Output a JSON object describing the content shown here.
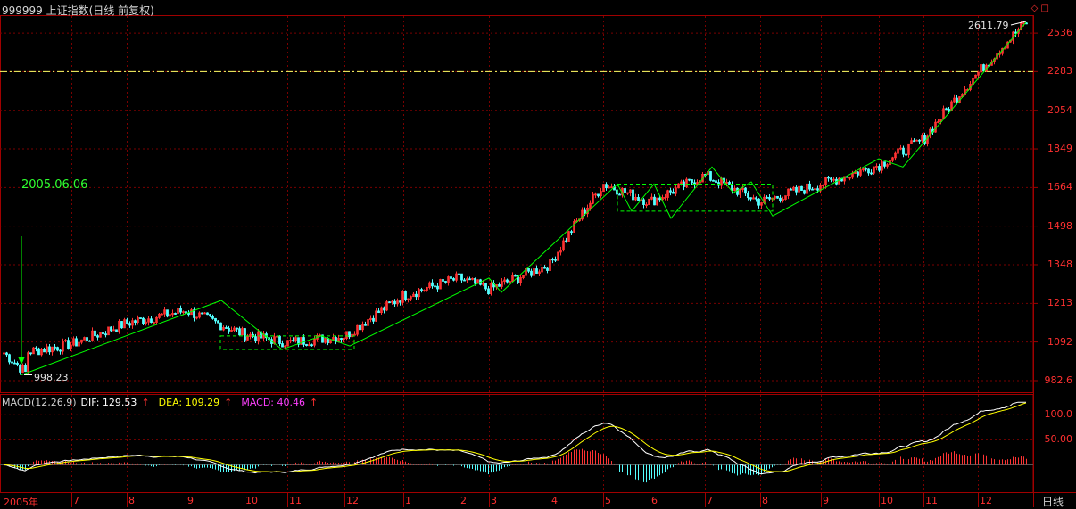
{
  "header": {
    "title": "999999 上证指数(日线 前复权)"
  },
  "annotations": {
    "date_label": "2005.06.06",
    "low_value": "998.23",
    "high_value": "2611.79"
  },
  "price_axis": {
    "labels": [
      "2536",
      "2283",
      "2054",
      "1849",
      "1664",
      "1498",
      "1348",
      "1213",
      "1092",
      "982.6"
    ]
  },
  "macd_axis": {
    "labels": [
      "100.0",
      "50.00"
    ]
  },
  "macd_legend": {
    "name": "MACD(12,26,9)",
    "dif": "DIF: 129.53",
    "dea": "DEA: 109.29",
    "macd": "MACD: 40.46",
    "up_arrow": "↑"
  },
  "time_axis": {
    "labels": [
      "2005年",
      "7",
      "8",
      "9",
      "10",
      "11",
      "12",
      "1",
      "2",
      "3",
      "4",
      "5",
      "6",
      "7",
      "8",
      "9",
      "10",
      "11",
      "12"
    ]
  },
  "period_button": "日线",
  "colors": {
    "up": "#ff3232",
    "down": "#54ffff",
    "grid": "#8b0000",
    "zigzag": "#00ff00",
    "dif": "#ffffff",
    "dea": "#ffff00",
    "hline": "#ffff66"
  },
  "chart_data": {
    "type": "line",
    "title": "999999 上证指数(日线 前复权)",
    "x": [
      "2005-06",
      "2005-07",
      "2005-08",
      "2005-09",
      "2005-10",
      "2005-11",
      "2005-12",
      "2006-01",
      "2006-02",
      "2006-03",
      "2006-04",
      "2006-05",
      "2006-06",
      "2006-07",
      "2006-08",
      "2006-09",
      "2006-10",
      "2006-11",
      "2006-12"
    ],
    "series": [
      {
        "values": [
          1050,
          1085,
          1150,
          1190,
          1115,
          1090,
          1110,
          1240,
          1300,
          1260,
          1350,
          1680,
          1600,
          1720,
          1600,
          1680,
          1770,
          1900,
          2611.79
        ]
      }
    ],
    "ylim": [
      982.6,
      2611.79
    ],
    "y_scale": "log",
    "low_point": 998.23,
    "high_point": 2611.79,
    "reference_level": 2283,
    "macd": {
      "dif": 129.53,
      "dea": 109.29,
      "macd": 40.46,
      "ylim": [
        -40,
        120
      ]
    }
  }
}
